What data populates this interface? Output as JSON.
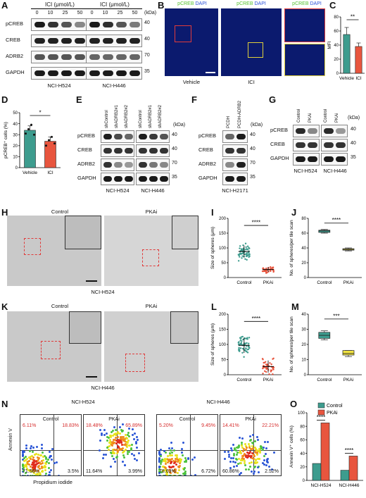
{
  "figure": {
    "panel_labels": [
      "A",
      "B",
      "C",
      "D",
      "E",
      "F",
      "G",
      "H",
      "I",
      "J",
      "K",
      "L",
      "M",
      "N",
      "O"
    ]
  },
  "panelA": {
    "treatment_title": "ICI (μmol/L)",
    "doses": [
      "0",
      "10",
      "25",
      "50"
    ],
    "rows": [
      "pCREB",
      "CREB",
      "ADRB2",
      "GAPDH"
    ],
    "kda_label": "(kDa)",
    "markers": [
      "40",
      "40",
      "70",
      "35"
    ],
    "cell_lines": [
      "NCI-H524",
      "NCI-H446"
    ]
  },
  "panelB": {
    "stain_green": "pCREB",
    "stain_blue": "DAPI",
    "conditions": [
      "Vehicle",
      "ICI"
    ]
  },
  "panelC": {
    "ylabel": "MFI",
    "sig": "**"
  },
  "panelD": {
    "ylabel": "pCREB⁺ cells (%)",
    "sig": "*"
  },
  "panelE": {
    "lanes": [
      "shControl",
      "shADRB2#1",
      "shADRB2#2",
      "shControl",
      "shADRB2#1",
      "shADRB2#2"
    ],
    "rows": [
      "pCREB",
      "CREB",
      "ADRB2",
      "GAPDH"
    ],
    "kda_label": "(kDa)",
    "markers": [
      "40",
      "40",
      "70",
      "35"
    ],
    "cell_lines": [
      "NCI-H524",
      "NCI-H446"
    ]
  },
  "panelF": {
    "lanes": [
      "PCDH",
      "PCDH-ADRB2"
    ],
    "rows": [
      "pCREB",
      "CREB",
      "ADRB2",
      "GAPDH"
    ],
    "kda_label": "(kDa)",
    "markers": [
      "40",
      "40",
      "70",
      "35"
    ],
    "cell_line": "NCI-H2171"
  },
  "panelG": {
    "lanes": [
      "Control",
      "PKAi",
      "Control",
      "PKAi"
    ],
    "rows": [
      "pCREB",
      "CREB",
      "GAPDH"
    ],
    "kda_label": "(kDa)",
    "markers": [
      "40",
      "40",
      "35"
    ],
    "cell_lines": [
      "NCI-H524",
      "NCI-H446"
    ]
  },
  "panelH": {
    "conditions": [
      "Control",
      "PKAi"
    ],
    "cell_line": "NCI-H524"
  },
  "panelK": {
    "conditions": [
      "Control",
      "PKAi"
    ],
    "cell_line": "NCI-H446"
  },
  "panelN": {
    "cell_lines": [
      "NCI-H524",
      "NCI-H446"
    ],
    "conditions": [
      "Control",
      "PKAi",
      "Control",
      "PKAi"
    ],
    "ylabel": "Annexin V",
    "xlabel": "Propidium iodide",
    "quadrants": [
      {
        "ul": "6.11%",
        "ur": "18.83%",
        "ll": "71.56%",
        "lr": "3.5%"
      },
      {
        "ul": "18.48%",
        "ur": "65.89%",
        "ll": "11.64%",
        "lr": "3.99%"
      },
      {
        "ul": "5.20%",
        "ur": "9.45%",
        "ll": "78.63%",
        "lr": "6.72%"
      },
      {
        "ul": "14.41%",
        "ur": "22.21%",
        "ll": "60.86%",
        "lr": "2.52%"
      }
    ]
  },
  "chart_data": [
    {
      "panel": "C",
      "type": "bar",
      "categories": [
        "Vehicle",
        "ICI"
      ],
      "values": [
        55,
        38
      ],
      "errors": [
        10,
        5
      ],
      "ylabel": "MFI",
      "ylim": [
        0,
        80
      ],
      "yticks": [
        "0",
        "20",
        "40",
        "60",
        "80"
      ],
      "colors": [
        "#3d9c8e",
        "#e8553e"
      ],
      "annotation": "**"
    },
    {
      "panel": "D",
      "type": "bar",
      "categories": [
        "Vehicle",
        "ICI"
      ],
      "values": [
        34,
        24
      ],
      "errors": [
        4,
        4
      ],
      "points": [
        [
          31,
          35,
          39,
          30
        ],
        [
          20,
          25,
          28,
          22
        ]
      ],
      "ylabel": "pCREB⁺ cells (%)",
      "ylim": [
        0,
        50
      ],
      "yticks": [
        "0",
        "10",
        "20",
        "30",
        "40",
        "50"
      ],
      "colors": [
        "#3d9c8e",
        "#e8553e"
      ],
      "annotation": "*"
    },
    {
      "panel": "I",
      "type": "scatter",
      "categories": [
        "Control",
        "PKAi"
      ],
      "means": [
        88,
        27
      ],
      "sd": [
        20,
        8
      ],
      "ylabel": "Size of spheres (μm)",
      "ylim": [
        0,
        200
      ],
      "yticks": [
        "0",
        "50",
        "100",
        "150",
        "200"
      ],
      "colors": [
        "#3d9c8e",
        "#e8553e"
      ],
      "annotation": "****"
    },
    {
      "panel": "J",
      "type": "box",
      "categories": [
        "Control",
        "PKAi"
      ],
      "boxes": [
        {
          "min": 60,
          "q1": 61,
          "median": 63,
          "q3": 64,
          "max": 65
        },
        {
          "min": 36,
          "q1": 37,
          "median": 38,
          "q3": 39,
          "max": 40
        }
      ],
      "ylabel": "No. of spheres/per tile scan",
      "ylim": [
        0,
        80
      ],
      "yticks": [
        "0",
        "20",
        "40",
        "60",
        "80"
      ],
      "colors": [
        "#3d9c8e",
        "#f2e442"
      ],
      "annotation": "****"
    },
    {
      "panel": "L",
      "type": "scatter",
      "categories": [
        "Control",
        "PKAi"
      ],
      "means": [
        97,
        27
      ],
      "sd": [
        25,
        20
      ],
      "ylabel": "Size of spheres (μm)",
      "ylim": [
        0,
        200
      ],
      "yticks": [
        "0",
        "50",
        "100",
        "150",
        "200"
      ],
      "colors": [
        "#3d9c8e",
        "#e8553e"
      ],
      "annotation": "****"
    },
    {
      "panel": "M",
      "type": "box",
      "categories": [
        "Control",
        "PKAi"
      ],
      "boxes": [
        {
          "min": 23,
          "q1": 24,
          "median": 26,
          "q3": 28,
          "max": 29
        },
        {
          "min": 12,
          "q1": 13,
          "median": 14,
          "q3": 16,
          "max": 16
        }
      ],
      "ylabel": "No. of spheres/per tile scan",
      "ylim": [
        0,
        40
      ],
      "yticks": [
        "0",
        "10",
        "20",
        "30",
        "40"
      ],
      "colors": [
        "#3d9c8e",
        "#f2e442"
      ],
      "annotation": "***"
    },
    {
      "panel": "O",
      "type": "bar",
      "categories": [
        "NCI-H524",
        "NCI-H446"
      ],
      "series": [
        {
          "name": "Control",
          "values": [
            25,
            15
          ],
          "color": "#3d9c8e"
        },
        {
          "name": "PKAi",
          "values": [
            85,
            36
          ],
          "color": "#e8553e"
        }
      ],
      "ylabel": "Annexin V⁺ cells (%)",
      "ylim": [
        0,
        100
      ],
      "yticks": [
        "0",
        "20",
        "40",
        "60",
        "80",
        "100"
      ],
      "annotations": [
        "****",
        "****"
      ]
    }
  ]
}
